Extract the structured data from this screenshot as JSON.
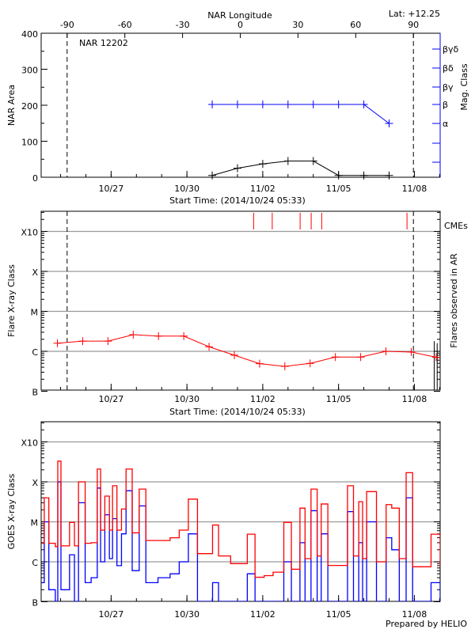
{
  "colors": {
    "area": "#000000",
    "mag_class": "#0000ff",
    "flare": "#ff0000",
    "cme": "#ff0000",
    "goes_long": "#ff0000",
    "goes_short": "#0000ff",
    "grid": "#999999"
  },
  "header": {
    "lat_label": "Lat: +12.25",
    "credit": "Prepared by HELIO"
  },
  "chart_data": [
    {
      "type": "line",
      "title": "NAR 12202",
      "top_axis_label": "NAR Longitude",
      "top_ticks": [
        "-90",
        "-60",
        "-30",
        "0",
        "30",
        "60",
        "90"
      ],
      "top_tick_values": [
        -90,
        -60,
        -30,
        0,
        30,
        60,
        90
      ],
      "xlabel": "Start Time: (2014/10/24 05:33)",
      "xlim": [
        "2014-10-24T05:33",
        "2014-11-09T00:30"
      ],
      "x_ticks": [
        "10/27",
        "10/30",
        "11/02",
        "11/05",
        "11/08"
      ],
      "x_tick_dates": [
        "2014-10-27T00:00",
        "2014-10-30T00:00",
        "2014-11-02T00:00",
        "2014-11-05T00:00",
        "2014-11-08T00:00"
      ],
      "ylabel": "NAR Area",
      "ylim": [
        0,
        400
      ],
      "y_ticks": [
        "0",
        "100",
        "200",
        "300",
        "400"
      ],
      "y2label": "Mag. Class",
      "y2_ticks": [
        "βγδ",
        "βδ",
        "βγ",
        "β",
        "α"
      ],
      "limb_longitudes": [
        -90,
        90
      ],
      "area": {
        "x": [
          "2014-10-31T00:00",
          "2014-11-01T00:00",
          "2014-11-02T00:00",
          "2014-11-03T00:00",
          "2014-11-04T00:00",
          "2014-11-05T00:00",
          "2014-11-06T00:00",
          "2014-11-07T00:00"
        ],
        "values": [
          5,
          25,
          37,
          45,
          45,
          5,
          5,
          5
        ]
      },
      "mag_class": {
        "x": [
          "2014-10-31T00:00",
          "2014-11-01T00:00",
          "2014-11-02T00:00",
          "2014-11-03T00:00",
          "2014-11-04T00:00",
          "2014-11-05T00:00",
          "2014-11-06T00:00",
          "2014-11-07T00:00"
        ],
        "values": [
          "β",
          "β",
          "β",
          "β",
          "β",
          "β",
          "β",
          "α"
        ]
      }
    },
    {
      "type": "line",
      "xlabel": "Start Time: (2014/10/24 05:33)",
      "ylabel": "Flare X-ray Class",
      "y2label": "Flares observed in AR",
      "yscale": "log",
      "ylim": [
        1e-07,
        0.003
      ],
      "y_ticks": [
        "B",
        "C",
        "M",
        "X",
        "X10"
      ],
      "y_tick_values": [
        1e-07,
        1e-06,
        1e-05,
        0.0001,
        0.001
      ],
      "cme_label": "CMEs",
      "flare_class": {
        "x": [
          "2014-10-24T21:00",
          "2014-10-25T21:00",
          "2014-10-26T21:00",
          "2014-10-27T21:00",
          "2014-10-28T21:00",
          "2014-10-29T21:00",
          "2014-10-30T21:00",
          "2014-10-31T21:00",
          "2014-11-01T21:00",
          "2014-11-02T21:00",
          "2014-11-03T21:00",
          "2014-11-04T21:00",
          "2014-11-05T21:00",
          "2014-11-06T21:00",
          "2014-11-07T21:00",
          "2014-11-08T20:40"
        ],
        "values": [
          1.6e-06,
          1.8e-06,
          1.8e-06,
          2.6e-06,
          2.4e-06,
          2.4e-06,
          1.3e-06,
          8e-07,
          4.9e-07,
          4.2e-07,
          5e-07,
          7.2e-07,
          7.2e-07,
          1e-06,
          9.6e-07,
          7.1e-07
        ]
      },
      "cme_times": [
        "2014-11-01T15:20",
        "2014-11-02T09:00",
        "2014-11-03T11:30",
        "2014-11-03T22:00",
        "2014-11-04T08:00",
        "2014-11-07T17:00"
      ],
      "flares_observed": {
        "x": [
          "2014-11-08T18:50",
          "2014-11-08T21:40"
        ],
        "values": [
          1.8e-06,
          1.6e-06
        ]
      }
    },
    {
      "type": "line",
      "ylabel": "GOES X-ray Class",
      "yscale": "log",
      "ylim": [
        1e-07,
        0.003
      ],
      "y_ticks": [
        "B",
        "C",
        "M",
        "X",
        "X10"
      ],
      "y_tick_values": [
        1e-07,
        1e-06,
        1e-05,
        0.0001,
        0.001
      ],
      "x": [
        "2014-10-24T06:00",
        "2014-10-24T08:30",
        "2014-10-24T12:50",
        "2014-10-24T19:00",
        "2014-10-24T21:20",
        "2014-10-25T00:20",
        "2014-10-25T08:30",
        "2014-10-25T13:10",
        "2014-10-25T17:00",
        "2014-10-25T23:20",
        "2014-10-26T05:00",
        "2014-10-26T10:50",
        "2014-10-26T14:00",
        "2014-10-26T18:00",
        "2014-10-26T22:20",
        "2014-10-27T01:20",
        "2014-10-27T05:30",
        "2014-10-27T09:50",
        "2014-10-27T14:10",
        "2014-10-27T20:00",
        "2014-10-28T02:40",
        "2014-10-28T09:00",
        "2014-10-28T20:30",
        "2014-10-29T08:00",
        "2014-10-29T16:40",
        "2014-10-30T01:20",
        "2014-10-30T10:00",
        "2014-10-31T00:20",
        "2014-10-31T06:00",
        "2014-10-31T17:30",
        "2014-11-01T05:00",
        "2014-11-01T09:20",
        "2014-11-01T16:40",
        "2014-11-02T01:20",
        "2014-11-02T09:50",
        "2014-11-02T20:00",
        "2014-11-03T03:10",
        "2014-11-03T11:20",
        "2014-11-03T16:10",
        "2014-11-03T21:50",
        "2014-11-04T03:40",
        "2014-11-04T07:30",
        "2014-11-04T13:50",
        "2014-11-04T22:20",
        "2014-11-05T08:30",
        "2014-11-05T14:10",
        "2014-11-05T19:10",
        "2014-11-05T22:50",
        "2014-11-06T02:40",
        "2014-11-06T12:00",
        "2014-11-06T21:10",
        "2014-11-07T02:30",
        "2014-11-07T09:40",
        "2014-11-07T16:10",
        "2014-11-07T22:20",
        "2014-11-08T10:00",
        "2014-11-08T15:50",
        "2014-11-09T00:30"
      ],
      "series": [
        {
          "values": [
            2.9e-06,
            4e-05,
            2.9e-06,
            2.4e-06,
            0.00033,
            2.5e-06,
            9.7e-06,
            2.5e-06,
            0.0001,
            2.9e-06,
            3e-06,
            0.00021,
            6.2e-06,
            4.4e-05,
            6.2e-06,
            8e-05,
            6.2e-06,
            2.1e-05,
            0.00021,
            5.3e-06,
            6.6e-05,
            3.4e-06,
            3.4e-06,
            4e-06,
            6.2e-06,
            3.7e-05,
            1.6e-06,
            8.3e-06,
            1.4e-06,
            9e-07,
            9e-07,
            4.9e-06,
            4.1e-07,
            4.5e-07,
            5.5e-07,
            9.7e-06,
            6.5e-07,
            2.2e-05,
            1.2e-06,
            6.6e-05,
            1.4e-06,
            2.8e-05,
            8.1e-07,
            8.1e-07,
            8e-05,
            1.4e-06,
            3.2e-05,
            1.2e-06,
            5.7e-05,
            1e-06,
            2.7e-05,
            2.2e-05,
            1.2e-06,
            0.00017,
            7.5e-07,
            7.5e-07,
            4.9e-06,
            7.5e-07
          ]
        },
        {
          "values": [
            3e-07,
            1e-05,
            2e-07,
            1e-07,
            0.0001,
            2e-07,
            1.5e-06,
            1e-07,
            3e-05,
            3e-07,
            4e-07,
            7e-05,
            1e-06,
            1.5e-05,
            1.2e-06,
            1.2e-05,
            8e-07,
            5e-06,
            6e-05,
            6e-07,
            2.5e-05,
            3e-07,
            4e-07,
            5e-07,
            1e-06,
            5e-06,
            1e-07,
            3e-07,
            1e-07,
            1e-07,
            1e-07,
            5e-07,
            1e-07,
            1e-07,
            1e-07,
            1e-06,
            1e-07,
            3e-06,
            1e-07,
            1.9e-05,
            1e-07,
            5e-06,
            1e-07,
            1e-07,
            1.8e-05,
            1e-07,
            3e-06,
            1e-07,
            1e-05,
            1e-07,
            4e-06,
            2e-06,
            1e-07,
            4e-05,
            1e-07,
            1e-07,
            3e-07,
            1e-07
          ]
        }
      ]
    }
  ]
}
